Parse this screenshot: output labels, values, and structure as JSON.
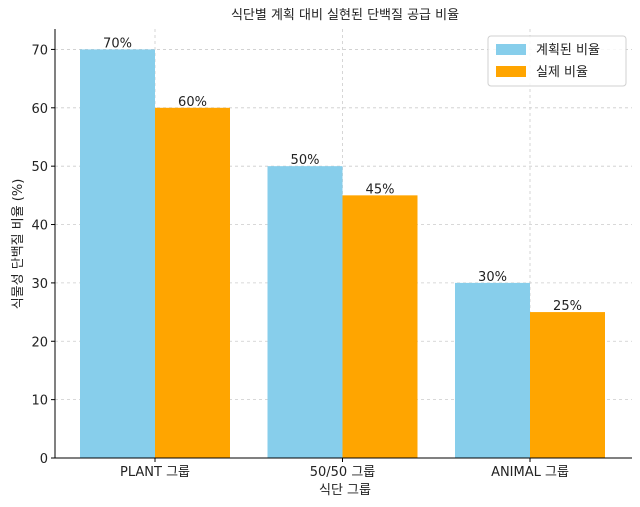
{
  "chart_data": {
    "type": "bar",
    "title": "식단별 계획 대비 실현된 단백질 공급 비율",
    "xlabel": "식단 그룹",
    "ylabel": "식물성 단백질 비율 (%)",
    "categories": [
      "PLANT 그룹",
      "50/50 그룹",
      "ANIMAL 그룹"
    ],
    "series": [
      {
        "name": "계획된 비율",
        "values": [
          70,
          50,
          30
        ],
        "labels": [
          "70%",
          "50%",
          "30%"
        ],
        "color": "#87ceeb"
      },
      {
        "name": "실제 비율",
        "values": [
          60,
          45,
          25
        ],
        "labels": [
          "60%",
          "45%",
          "25%"
        ],
        "color": "#ffa500"
      }
    ],
    "ylim": [
      0,
      73.5
    ],
    "yticks": [
      0,
      10,
      20,
      30,
      40,
      50,
      60,
      70
    ],
    "grid": true,
    "legend_position": "top-right"
  }
}
